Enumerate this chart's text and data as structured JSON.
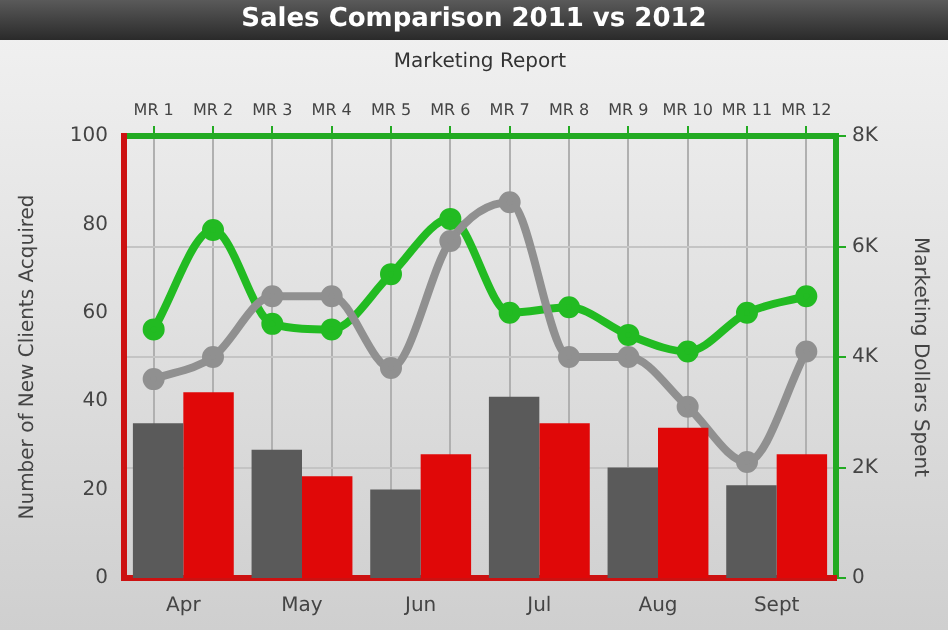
{
  "chart_data": [
    {
      "type": "bar",
      "title": "Sales Comparison 2011 vs 2012",
      "ylabel": "Number of New Clients Acquired",
      "categories": [
        "Apr",
        "May",
        "Jun",
        "Jul",
        "Aug",
        "Sept"
      ],
      "series": [
        {
          "color": "#5a5a5a",
          "values": [
            35,
            29,
            20,
            41,
            25,
            21
          ]
        },
        {
          "color": "#e00808",
          "values": [
            42,
            23,
            28,
            35,
            34,
            28
          ]
        }
      ],
      "ylim": [
        0,
        100
      ],
      "yticks": [
        0,
        20,
        40,
        60,
        80,
        100
      ],
      "legend": false
    },
    {
      "type": "line",
      "xlabel": "Marketing Report",
      "ylabel": "Marketing Dollars Spent",
      "categories": [
        "MR 1",
        "MR 2",
        "MR 3",
        "MR 4",
        "MR 5",
        "MR 6",
        "MR 7",
        "MR 8",
        "MR 9",
        "MR 10",
        "MR 11",
        "MR 12"
      ],
      "series": [
        {
          "color": "#909090",
          "values": [
            3600,
            4000,
            5100,
            5100,
            3800,
            6100,
            6800,
            4000,
            4000,
            3100,
            2100,
            4100
          ]
        },
        {
          "color": "#22bb22",
          "values": [
            4500,
            6300,
            4600,
            4500,
            5500,
            6500,
            4800,
            4900,
            4400,
            4100,
            4800,
            5100
          ]
        }
      ],
      "ylim": [
        0,
        8000
      ],
      "yticks": [
        0,
        {
          "value": 2000,
          "label": "2K"
        },
        {
          "value": 4000,
          "label": "4K"
        },
        {
          "value": 6000,
          "label": "6K"
        },
        {
          "value": 8000,
          "label": "8K"
        }
      ],
      "grid": true,
      "legend": false,
      "marker": "circle",
      "line_style": "solid"
    }
  ]
}
